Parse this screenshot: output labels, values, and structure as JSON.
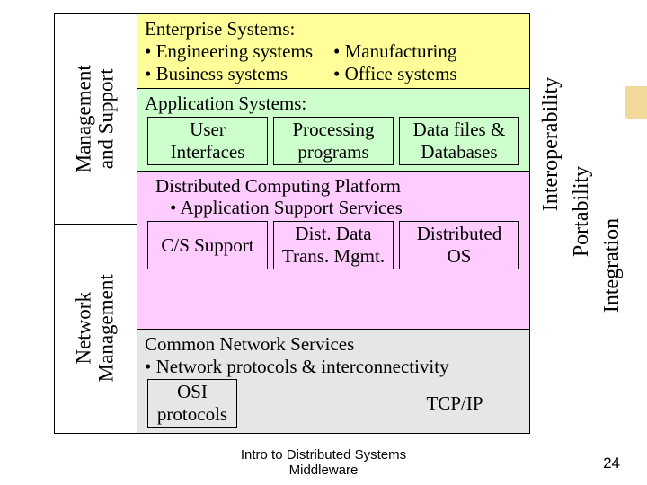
{
  "left": {
    "top": "Management\nand Support",
    "bottom": "Network\nManagement"
  },
  "layers": {
    "enterprise": {
      "title": "Enterprise Systems:",
      "b1": "• Engineering systems",
      "b2": "• Manufacturing",
      "b3": "• Business systems",
      "b4": "• Office systems"
    },
    "app": {
      "title": "Application Systems:",
      "c1": "User\nInterfaces",
      "c2": "Processing\nprograms",
      "c3": "Data files &\nDatabases"
    },
    "dist": {
      "l1": "Distributed Computing Platform",
      "l2": "• Application Support Services",
      "c1": "C/S Support",
      "c2": "Dist. Data\nTrans. Mgmt.",
      "c3": "Distributed\nOS"
    },
    "net": {
      "title": "Common Network Services",
      "l1": "• Network protocols & interconnectivity",
      "c1": "OSI\nprotocols",
      "c2": "TCP/IP"
    }
  },
  "right": {
    "interop": "Interoperability",
    "port": "Portability",
    "integ": "Integration"
  },
  "footer": {
    "l1": "Intro to Distributed Systems",
    "l2": "Middleware"
  },
  "page": "24",
  "colors": {
    "layer1": "#ffff99",
    "layer2": "#ccffcc",
    "layer3": "#ffccff",
    "layer4": "#e6e6e6",
    "border": "#000000"
  }
}
